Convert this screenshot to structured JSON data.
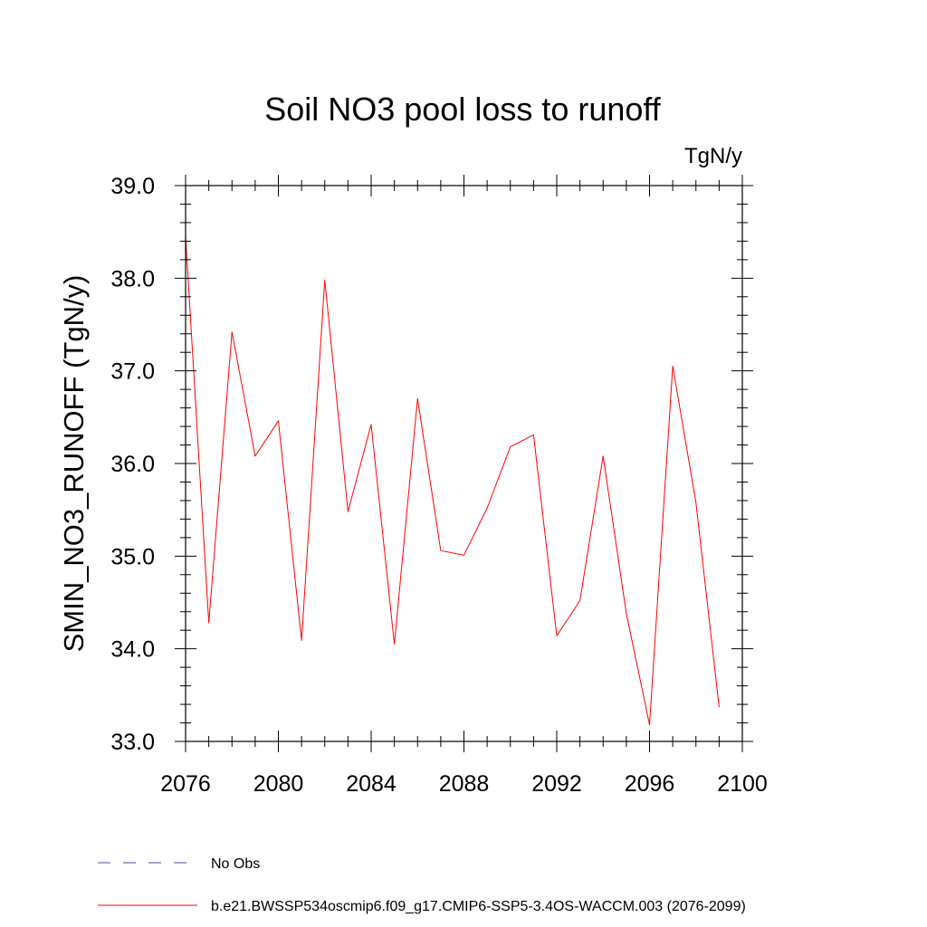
{
  "chart_data": {
    "type": "line",
    "title": "Soil NO3 pool loss to runoff",
    "units_label": "TgN/y",
    "ylabel": "SMIN_NO3_RUNOFF  (TgN/y)",
    "xlabel": "",
    "xlim": [
      2076,
      2100
    ],
    "ylim": [
      33.0,
      39.0
    ],
    "x_ticks": [
      2076,
      2080,
      2084,
      2088,
      2092,
      2096,
      2100
    ],
    "x_tick_labels": [
      "2076",
      "2080",
      "2084",
      "2088",
      "2092",
      "2096",
      "2100"
    ],
    "y_ticks": [
      33.0,
      34.0,
      35.0,
      36.0,
      37.0,
      38.0,
      39.0
    ],
    "y_tick_labels": [
      "33.0",
      "34.0",
      "35.0",
      "36.0",
      "37.0",
      "38.0",
      "39.0"
    ],
    "grid": false,
    "legend_position": "bottom",
    "series": [
      {
        "name": "b.e21.BWSSP534oscmip6.f09_g17.CMIP6-SSP5-3.4OS-WACCM.003 (2076-2099)",
        "color": "#ff0000",
        "line_style": "solid",
        "x": [
          2076,
          2077,
          2078,
          2079,
          2080,
          2081,
          2082,
          2083,
          2084,
          2085,
          2086,
          2087,
          2088,
          2089,
          2090,
          2091,
          2092,
          2093,
          2094,
          2095,
          2096,
          2097,
          2098,
          2099
        ],
        "y": [
          38.45,
          34.28,
          37.42,
          36.08,
          36.46,
          34.09,
          37.98,
          35.48,
          36.42,
          34.05,
          36.7,
          35.06,
          35.01,
          35.52,
          36.18,
          36.31,
          34.14,
          34.52,
          36.08,
          34.38,
          33.18,
          37.05,
          35.58,
          33.37
        ]
      }
    ],
    "legend": [
      {
        "label": "No Obs",
        "color": "#5a4aa0",
        "line_style": "dashed"
      },
      {
        "label": "b.e21.BWSSP534oscmip6.f09_g17.CMIP6-SSP5-3.4OS-WACCM.003 (2076-2099)",
        "color": "#ff0000",
        "line_style": "solid"
      }
    ]
  }
}
